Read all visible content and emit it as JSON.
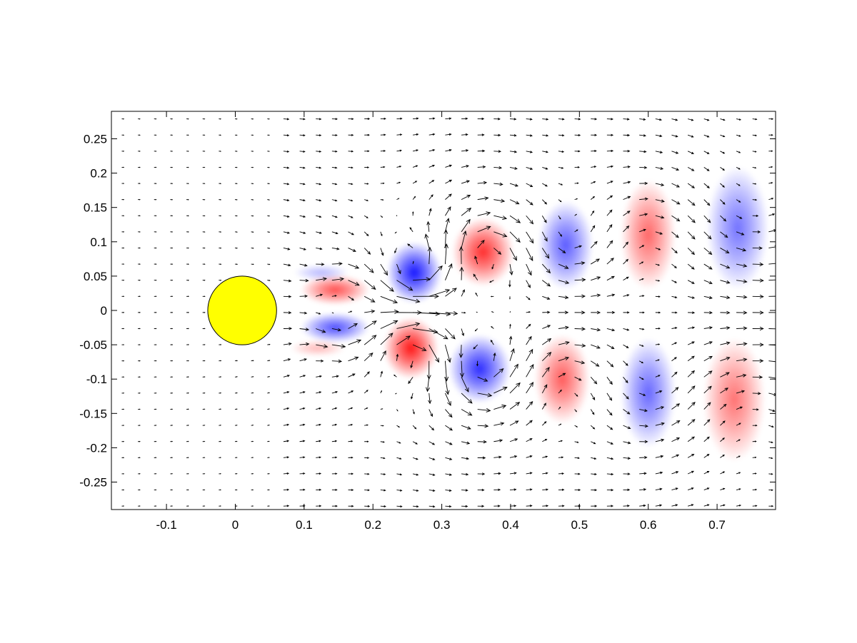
{
  "chart_data": {
    "type": "vector-field",
    "title": "",
    "xlabel": "",
    "ylabel": "",
    "xlim": [
      -0.18,
      0.785
    ],
    "ylim": [
      -0.29,
      0.29
    ],
    "xticks": [
      -0.1,
      0,
      0.1,
      0.2,
      0.3,
      0.4,
      0.5,
      0.6,
      0.7
    ],
    "xtick_labels": [
      "-0.1",
      "0",
      "0.1",
      "0.2",
      "0.3",
      "0.4",
      "0.5",
      "0.6",
      "0.7"
    ],
    "yticks": [
      0.25,
      0.2,
      0.15,
      0.1,
      0.05,
      0,
      -0.05,
      -0.1,
      -0.15,
      -0.2,
      -0.25
    ],
    "ytick_labels": [
      "0.25",
      "0.2",
      "0.15",
      "0.1",
      "0.05",
      "0",
      "-0.05",
      "-0.1",
      "-0.15",
      "-0.2",
      "-0.25"
    ],
    "grid": false,
    "cylinder": {
      "center": [
        0.01,
        0
      ],
      "radius": 0.05,
      "color": "#ffff00"
    },
    "colors": {
      "positive": "#ff0000",
      "negative": "#0000ff",
      "arrows": "#000000"
    },
    "vortices": [
      {
        "x": 0.145,
        "y": 0.03,
        "strength": 0.75,
        "rx": 0.05,
        "ry": 0.022
      },
      {
        "x": 0.145,
        "y": -0.025,
        "strength": -0.75,
        "rx": 0.05,
        "ry": 0.022
      },
      {
        "x": 0.125,
        "y": 0.055,
        "strength": -0.3,
        "rx": 0.04,
        "ry": 0.012
      },
      {
        "x": 0.12,
        "y": -0.055,
        "strength": 0.3,
        "rx": 0.04,
        "ry": 0.012
      },
      {
        "x": 0.26,
        "y": 0.055,
        "strength": -1.0,
        "rx": 0.04,
        "ry": 0.045
      },
      {
        "x": 0.255,
        "y": -0.055,
        "strength": 1.0,
        "rx": 0.04,
        "ry": 0.045
      },
      {
        "x": 0.36,
        "y": 0.085,
        "strength": 0.9,
        "rx": 0.045,
        "ry": 0.05
      },
      {
        "x": 0.355,
        "y": -0.085,
        "strength": -0.9,
        "rx": 0.045,
        "ry": 0.05
      },
      {
        "x": 0.48,
        "y": 0.095,
        "strength": -0.7,
        "rx": 0.04,
        "ry": 0.065
      },
      {
        "x": 0.475,
        "y": -0.1,
        "strength": 0.7,
        "rx": 0.04,
        "ry": 0.065
      },
      {
        "x": 0.6,
        "y": 0.11,
        "strength": 0.65,
        "rx": 0.04,
        "ry": 0.08
      },
      {
        "x": 0.6,
        "y": -0.12,
        "strength": -0.65,
        "rx": 0.04,
        "ry": 0.08
      },
      {
        "x": 0.73,
        "y": 0.12,
        "strength": -0.6,
        "rx": 0.045,
        "ry": 0.09
      },
      {
        "x": 0.725,
        "y": -0.13,
        "strength": 0.6,
        "rx": 0.045,
        "ry": 0.09
      }
    ]
  }
}
